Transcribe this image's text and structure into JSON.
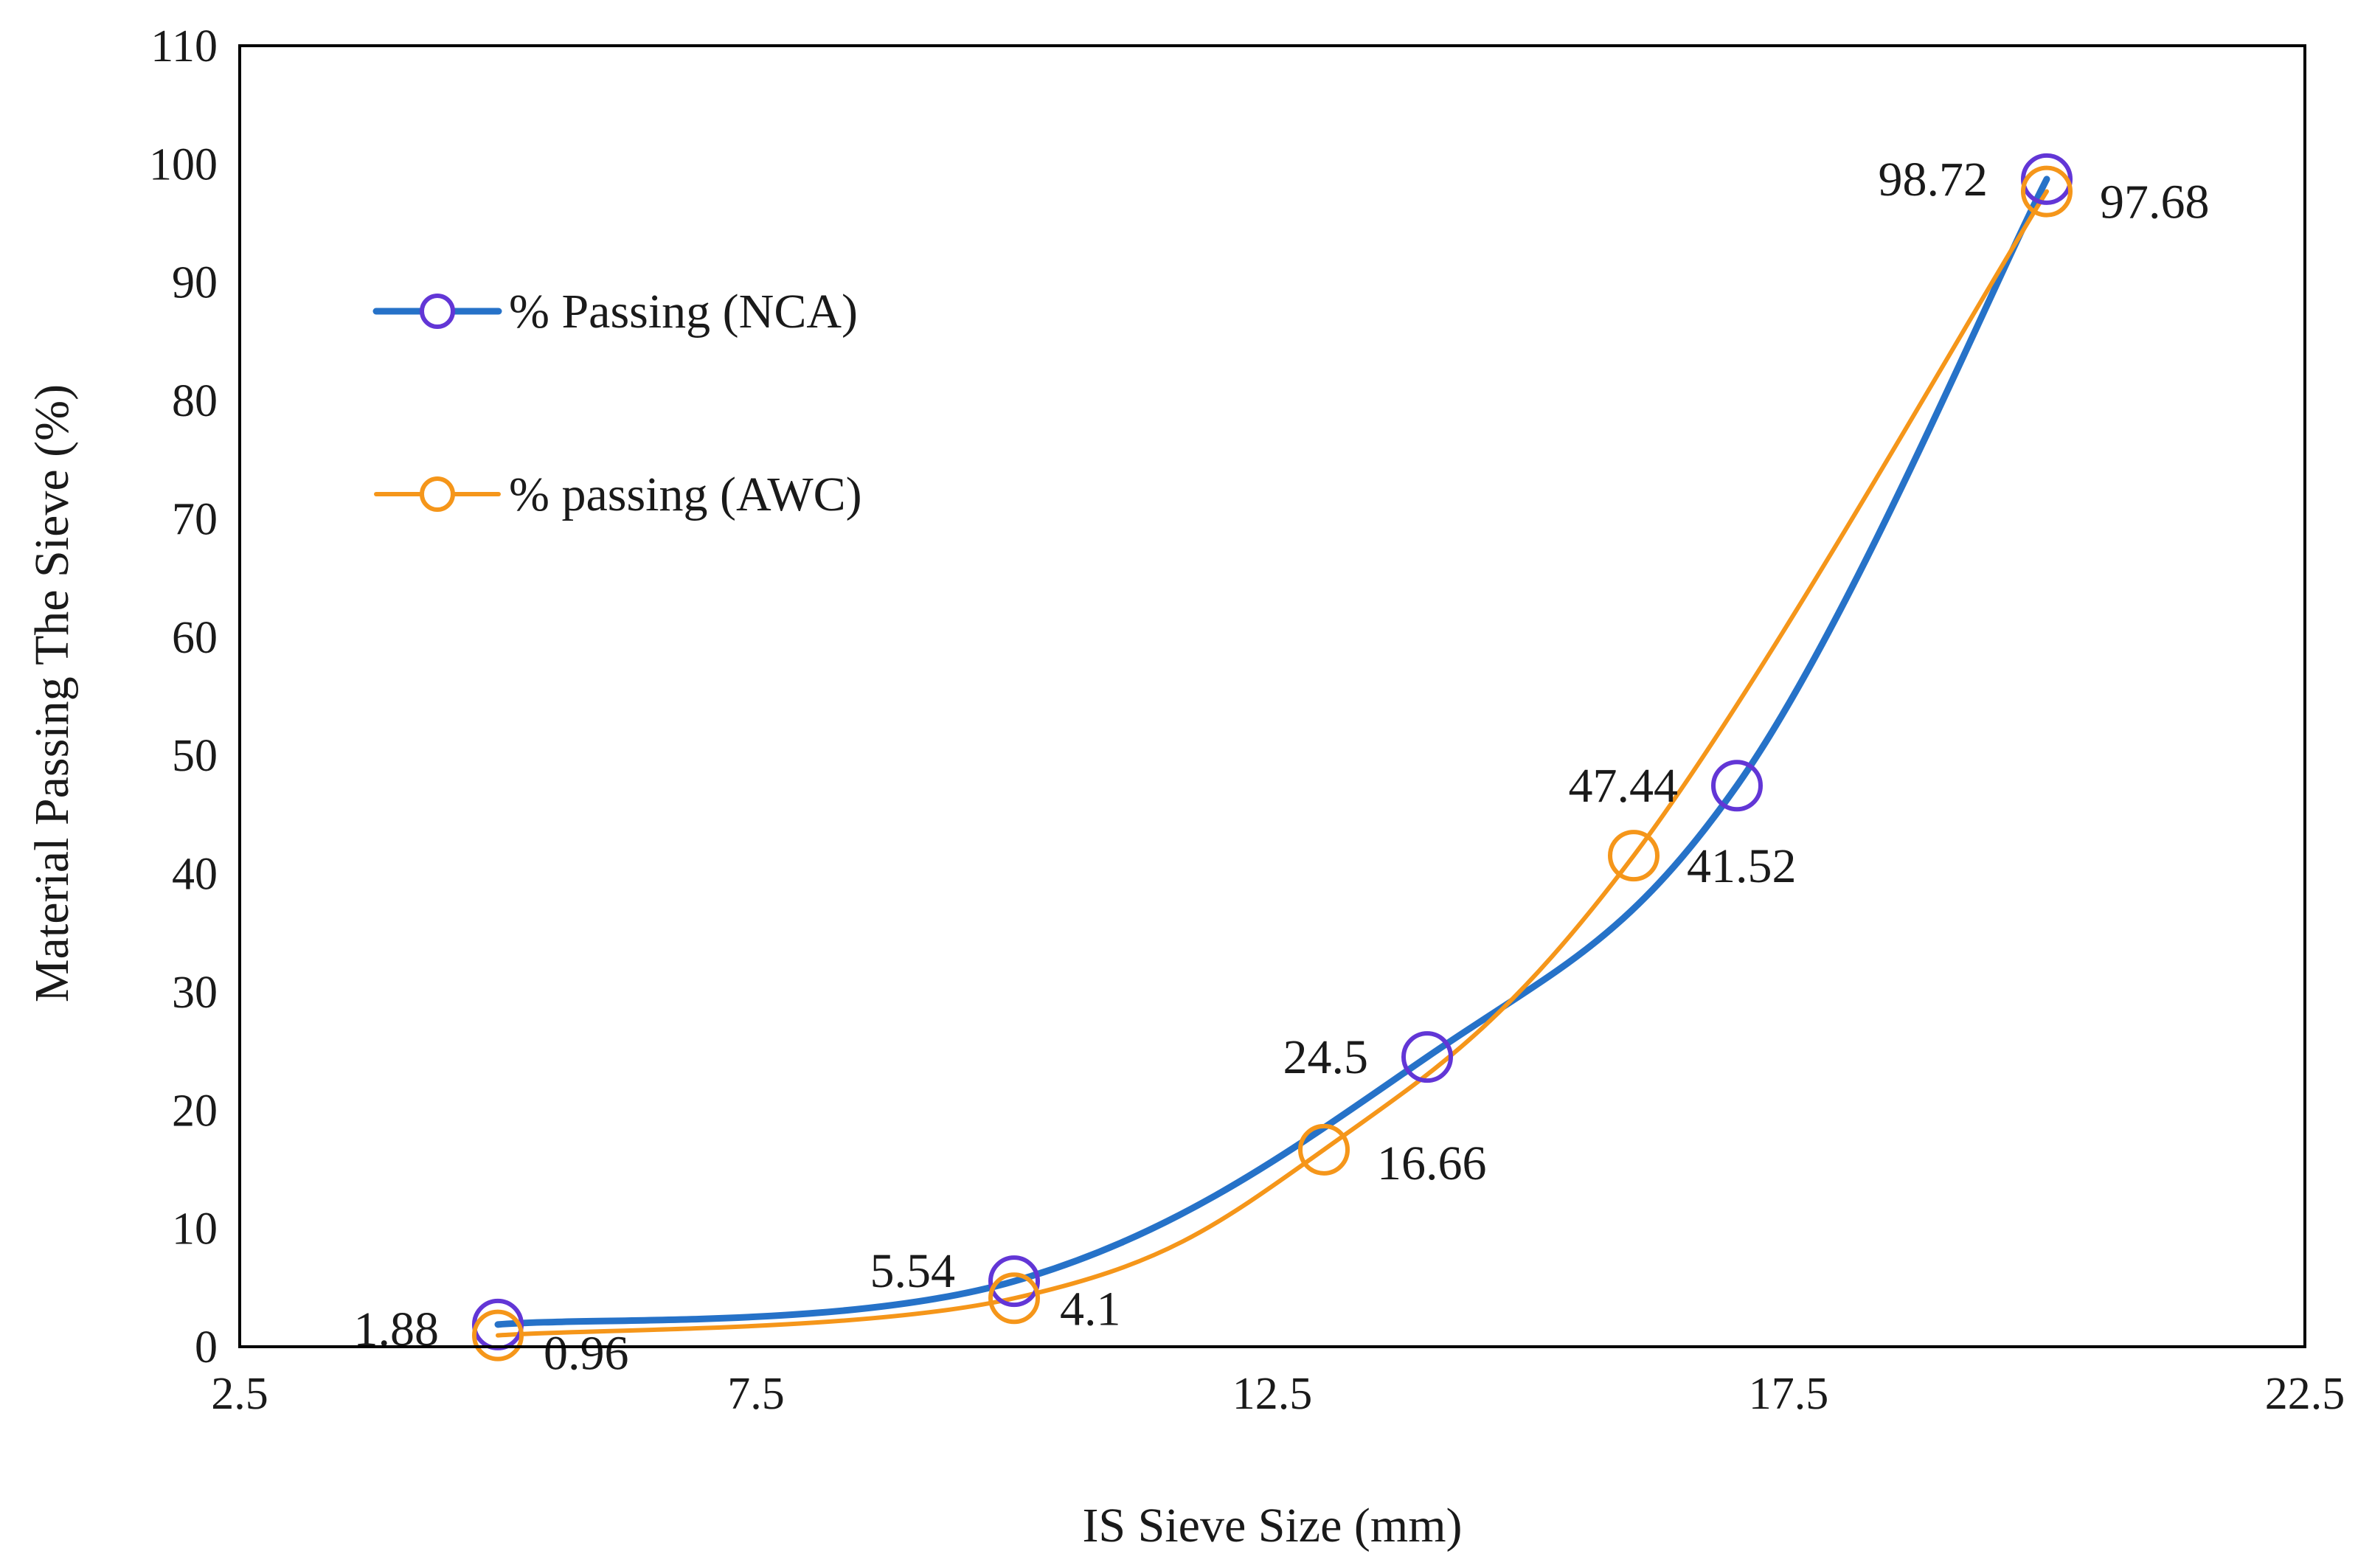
{
  "chart_data": {
    "type": "line",
    "title": "",
    "xlabel": "IS Sieve Size (mm)",
    "ylabel": "Material Passing The Sieve (%)",
    "xlim": [
      2.5,
      22.5
    ],
    "ylim": [
      0,
      110
    ],
    "xticks": [
      2.5,
      7.5,
      12.5,
      17.5,
      22.5
    ],
    "yticks": [
      0,
      10,
      20,
      30,
      40,
      50,
      60,
      70,
      80,
      90,
      100,
      110
    ],
    "grid": false,
    "legend_position": "upper-left",
    "series": [
      {
        "name": "% Passing (NCA)",
        "line_color": "#2672c8",
        "marker_color": "#6236d6",
        "x": [
          5,
          10,
          14,
          17,
          20
        ],
        "y": [
          1.88,
          5.54,
          24.5,
          47.44,
          98.72
        ],
        "labels": [
          "1.88",
          "5.54",
          "24.5",
          "47.44",
          "98.72"
        ]
      },
      {
        "name": "% passing (AWC)",
        "line_color": "#f5961a",
        "marker_color": "#f5961a",
        "x": [
          5,
          10,
          13,
          16,
          20
        ],
        "y": [
          0.96,
          4.1,
          16.66,
          41.52,
          97.68
        ],
        "labels": [
          "0.96",
          "4.1",
          "16.66",
          "41.52",
          "97.68"
        ]
      }
    ]
  }
}
